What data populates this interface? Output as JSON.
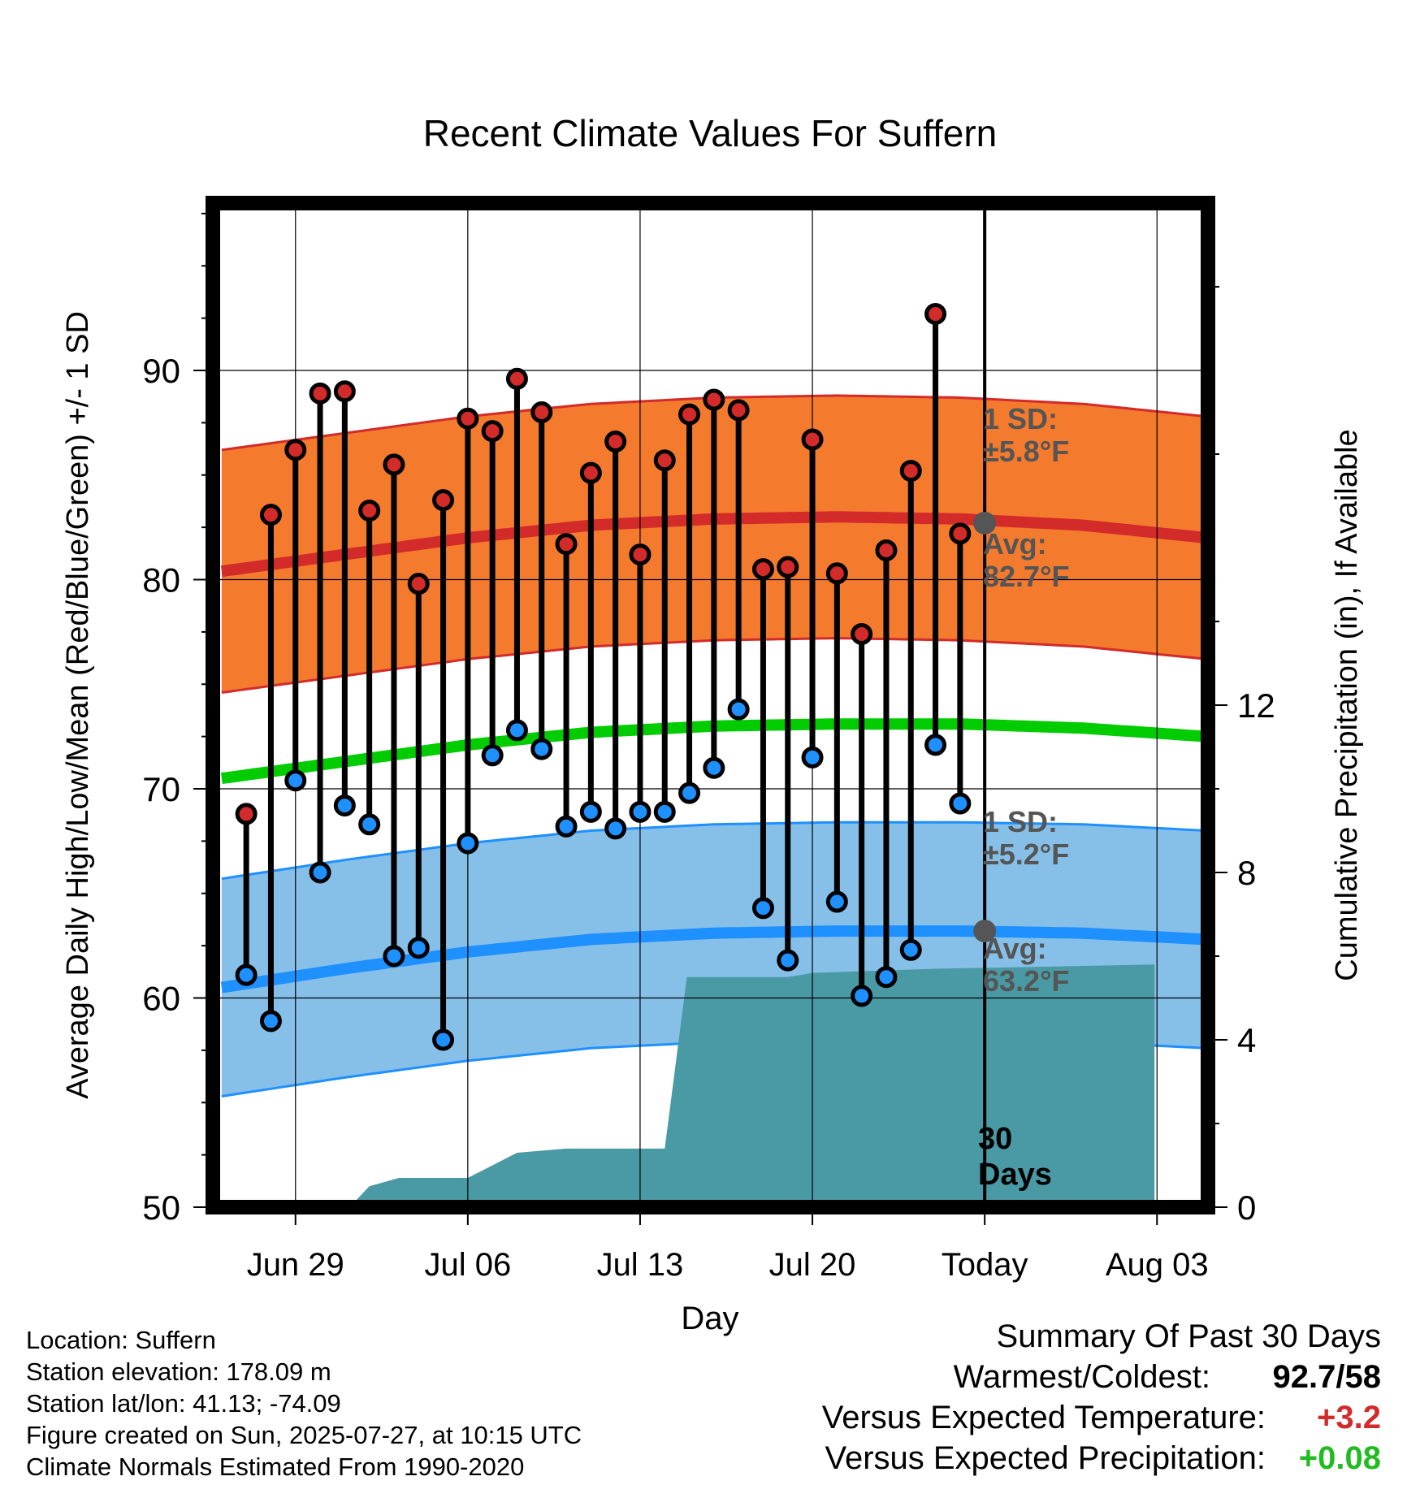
{
  "chart_data": {
    "type": "line",
    "title": "Recent Climate Values For Suffern",
    "xlabel": "Day",
    "ylabel": "Average Daily High/Low/Mean (Red/Blue/Green) +/- 1 SD",
    "y2label": "Cumulative Precipitation (in), If Available",
    "x_ticks": [
      "Jun 29",
      "Jul 06",
      "Jul 13",
      "Jul 20",
      "Today",
      "Aug 03"
    ],
    "y_ticks": [
      "50",
      "60",
      "70",
      "80",
      "90"
    ],
    "y2_ticks": [
      "0",
      "4",
      "8",
      "12"
    ],
    "ylim": [
      50,
      98
    ],
    "y2lim": [
      0,
      24
    ],
    "grid": true,
    "days": [
      "Jun 27",
      "Jun 28",
      "Jun 29",
      "Jun 30",
      "Jul 01",
      "Jul 02",
      "Jul 03",
      "Jul 04",
      "Jul 05",
      "Jul 06",
      "Jul 07",
      "Jul 08",
      "Jul 09",
      "Jul 10",
      "Jul 11",
      "Jul 12",
      "Jul 13",
      "Jul 14",
      "Jul 15",
      "Jul 16",
      "Jul 17",
      "Jul 18",
      "Jul 19",
      "Jul 20",
      "Jul 21",
      "Jul 22",
      "Jul 23",
      "Jul 24",
      "Jul 25",
      "Jul 26"
    ],
    "series": [
      {
        "name": "High",
        "color": "#d32a2a",
        "values": [
          68.8,
          83.1,
          86.2,
          88.9,
          89.0,
          83.3,
          85.5,
          79.8,
          83.8,
          87.7,
          87.1,
          89.6,
          88.0,
          81.7,
          85.1,
          86.6,
          81.2,
          85.7,
          87.9,
          88.6,
          88.1,
          80.5,
          80.6,
          86.7,
          80.3,
          77.4,
          81.4,
          85.2,
          92.7,
          82.2
        ]
      },
      {
        "name": "Low",
        "color": "#1e90ff",
        "values": [
          61.1,
          58.9,
          70.4,
          66.0,
          69.2,
          68.3,
          62.0,
          62.4,
          58.0,
          67.4,
          71.6,
          72.8,
          71.9,
          68.2,
          68.9,
          68.1,
          68.9,
          68.9,
          69.8,
          71.0,
          73.8,
          64.3,
          61.8,
          71.5,
          64.6,
          60.1,
          61.0,
          62.3,
          72.1,
          69.3
        ]
      },
      {
        "name": "Cumulative Precipitation",
        "color": "#4a9aa5",
        "x_days": [
          0.5,
          4.2,
          5.0,
          6.2,
          9.0,
          10.0,
          11.0,
          13.0,
          17.0,
          17.9,
          22.0,
          23.0,
          28.0,
          36.9
        ],
        "values": [
          0.0,
          0.0,
          0.5,
          0.7,
          0.7,
          1.0,
          1.3,
          1.4,
          1.4,
          5.5,
          5.5,
          5.6,
          5.7,
          5.8
        ]
      }
    ],
    "normals": {
      "high_avg": [
        80.4,
        81.2,
        82.0,
        82.6,
        82.9,
        83.0,
        82.9,
        82.6,
        82.0
      ],
      "low_avg": [
        60.5,
        61.4,
        62.2,
        62.8,
        63.1,
        63.2,
        63.2,
        63.1,
        62.8
      ],
      "mean_avg": [
        70.5,
        71.3,
        72.1,
        72.7,
        73.0,
        73.1,
        73.1,
        72.9,
        72.5
      ],
      "high_sd": 5.8,
      "low_sd": 5.2,
      "high_color": "#f47a2e",
      "low_color": "#86c0e8",
      "mean_color": "#00cc00"
    },
    "annotations": {
      "high_sd_label": "1 SD:",
      "high_sd_value": "±5.8°F",
      "high_avg_label": "Avg:",
      "high_avg_value": "82.7°F",
      "low_sd_label": "1 SD:",
      "low_sd_value": "±5.2°F",
      "low_avg_label": "Avg:",
      "low_avg_value": "63.2°F",
      "days_count": "30",
      "days_word": "Days"
    }
  },
  "info": {
    "location": "Location: Suffern",
    "elevation": "Station elevation: 178.09 m",
    "latlon": "Station lat/lon: 41.13; -74.09",
    "created": "Figure created on Sun, 2025-07-27, at 10:15 UTC",
    "normals": "Climate Normals Estimated From 1990-2020"
  },
  "summary": {
    "title": "Summary Of Past 30 Days",
    "warm_cold_label": "Warmest/Coldest:",
    "warm_cold_value": "92.7/58",
    "temp_label": "Versus Expected Temperature:",
    "temp_value": "+3.2",
    "temp_color": "#d32a2a",
    "precip_label": "Versus Expected Precipitation:",
    "precip_value": "+0.08",
    "precip_color": "#22bb22"
  }
}
